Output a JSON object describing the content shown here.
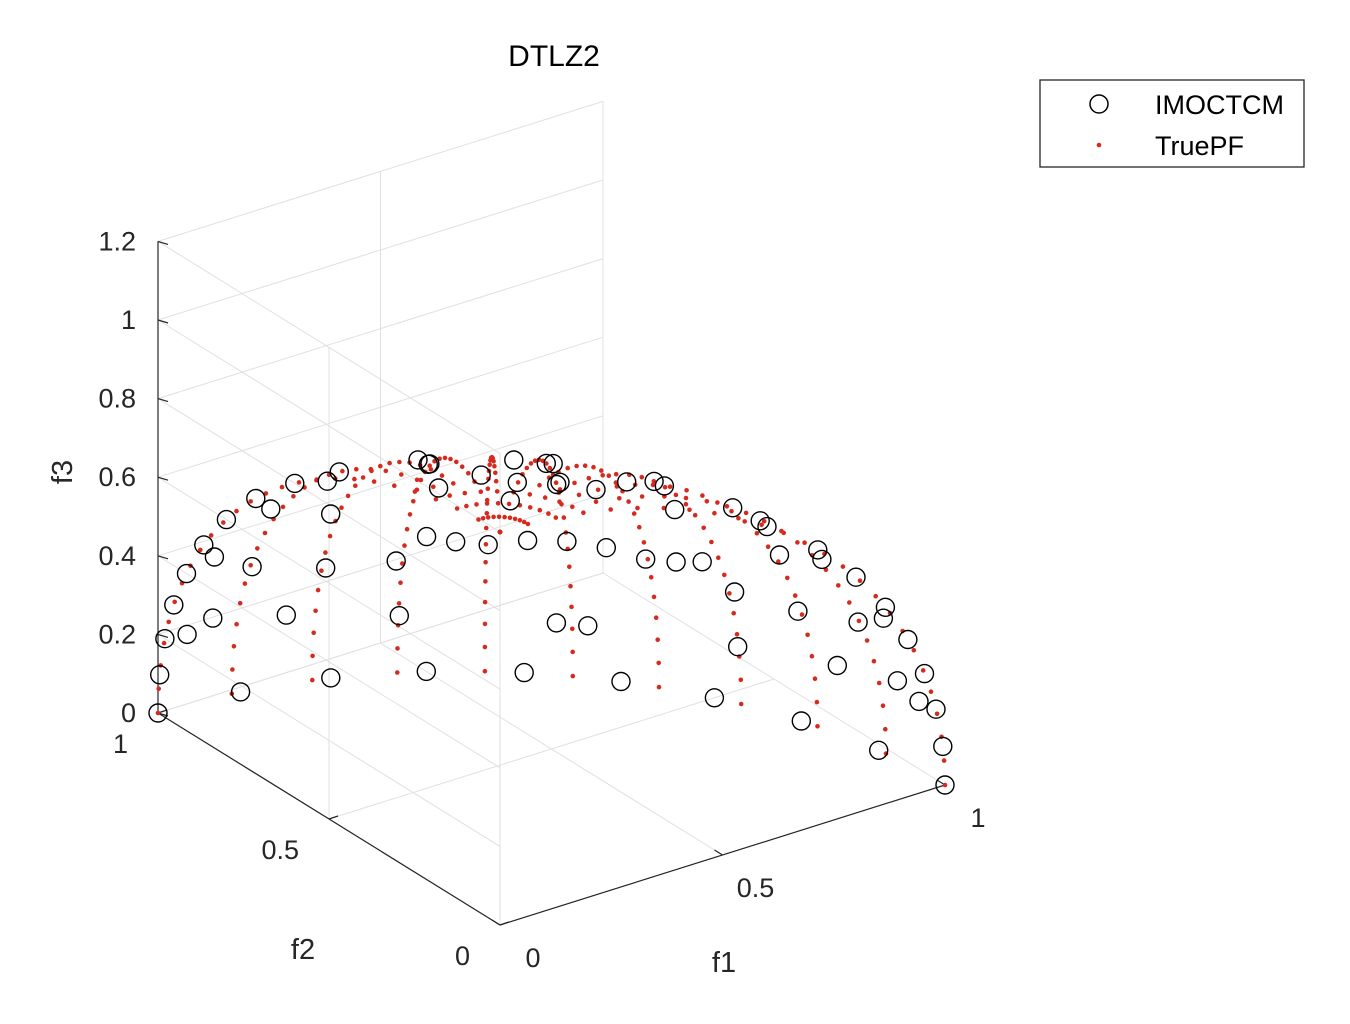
{
  "chart_data": {
    "type": "scatter",
    "title": "DTLZ2",
    "xlabel": "f1",
    "ylabel": "f2",
    "zlabel": "f3",
    "xlim": [
      0,
      1
    ],
    "ylim": [
      0,
      1
    ],
    "zlim": [
      0,
      1.2
    ],
    "x_ticks": [
      {
        "value": 0,
        "label": "0"
      },
      {
        "value": 0.5,
        "label": "0.5"
      },
      {
        "value": 1,
        "label": "1"
      }
    ],
    "y_ticks": [
      {
        "value": 0,
        "label": "0"
      },
      {
        "value": 0.5,
        "label": "0.5"
      },
      {
        "value": 1,
        "label": "1"
      }
    ],
    "z_ticks": [
      {
        "value": 0,
        "label": "0"
      },
      {
        "value": 0.2,
        "label": "0.2"
      },
      {
        "value": 0.4,
        "label": "0.4"
      },
      {
        "value": 0.6,
        "label": "0.6"
      },
      {
        "value": 0.8,
        "label": "0.8"
      },
      {
        "value": 1,
        "label": "1"
      },
      {
        "value": 1.2,
        "label": "1.2"
      }
    ],
    "grid": true,
    "legend_position": "top-right",
    "colors": {
      "imoctcm": "#000000",
      "truepf": "#d62a1e",
      "grid": "#e0e0e0",
      "axis": "#262626"
    },
    "series": [
      {
        "name": "IMOCTCM",
        "marker": "open-circle",
        "points": [
          [
            1.0,
            0.0,
            0.0
          ],
          [
            0.995,
            0.0,
            0.1
          ],
          [
            0.98,
            0.0,
            0.2
          ],
          [
            0.954,
            0.0,
            0.3
          ],
          [
            0.917,
            0.0,
            0.4
          ],
          [
            0.866,
            0.0,
            0.5
          ],
          [
            0.8,
            0.0,
            0.6
          ],
          [
            0.714,
            0.0,
            0.7
          ],
          [
            0.6,
            0.0,
            0.8
          ],
          [
            0.0,
            1.0,
            0.0
          ],
          [
            0.0,
            0.995,
            0.1
          ],
          [
            0.0,
            0.98,
            0.2
          ],
          [
            0.0,
            0.954,
            0.3
          ],
          [
            0.0,
            0.917,
            0.4
          ],
          [
            0.0,
            0.866,
            0.5
          ],
          [
            0.0,
            0.8,
            0.6
          ],
          [
            0.0,
            0.714,
            0.7
          ],
          [
            0.0,
            0.6,
            0.8
          ],
          [
            0.985,
            0.174,
            0.0
          ],
          [
            0.94,
            0.342,
            0.0
          ],
          [
            0.866,
            0.5,
            0.0
          ],
          [
            0.766,
            0.643,
            0.0
          ],
          [
            0.643,
            0.766,
            0.0
          ],
          [
            0.5,
            0.866,
            0.0
          ],
          [
            0.342,
            0.94,
            0.0
          ],
          [
            0.174,
            0.985,
            0.0
          ],
          [
            0.9,
            0.3,
            0.316
          ],
          [
            0.85,
            0.42,
            0.318
          ],
          [
            0.78,
            0.5,
            0.376
          ],
          [
            0.7,
            0.6,
            0.387
          ],
          [
            0.6,
            0.7,
            0.387
          ],
          [
            0.5,
            0.78,
            0.376
          ],
          [
            0.42,
            0.85,
            0.318
          ],
          [
            0.3,
            0.9,
            0.316
          ],
          [
            0.8,
            0.45,
            0.396
          ],
          [
            0.65,
            0.65,
            0.394
          ],
          [
            0.45,
            0.8,
            0.396
          ],
          [
            0.92,
            0.15,
            0.362
          ],
          [
            0.15,
            0.92,
            0.362
          ],
          [
            0.95,
            0.25,
            0.187
          ],
          [
            0.25,
            0.95,
            0.187
          ],
          [
            0.82,
            0.25,
            0.514
          ],
          [
            0.25,
            0.82,
            0.514
          ],
          [
            0.7,
            0.4,
            0.592
          ],
          [
            0.4,
            0.7,
            0.592
          ],
          [
            0.55,
            0.55,
            0.628
          ],
          [
            0.75,
            0.55,
            0.367
          ],
          [
            0.55,
            0.75,
            0.367
          ],
          [
            0.88,
            0.45,
            0.152
          ],
          [
            0.45,
            0.88,
            0.152
          ],
          [
            0.72,
            0.68,
            0.138
          ],
          [
            0.68,
            0.72,
            0.138
          ],
          [
            0.6,
            0.3,
            0.742
          ],
          [
            0.3,
            0.6,
            0.742
          ],
          [
            0.45,
            0.45,
            0.772
          ],
          [
            0.7,
            0.15,
            0.698
          ],
          [
            0.15,
            0.7,
            0.698
          ],
          [
            0.5,
            0.2,
            0.843
          ],
          [
            0.2,
            0.5,
            0.843
          ],
          [
            0.35,
            0.3,
            0.887
          ],
          [
            0.3,
            0.35,
            0.887
          ],
          [
            0.25,
            0.15,
            0.956
          ],
          [
            0.15,
            0.25,
            0.956
          ],
          [
            0.1,
            0.1,
            0.99
          ],
          [
            0.4,
            0.15,
            0.904
          ],
          [
            0.15,
            0.4,
            0.904
          ],
          [
            0.6,
            0.5,
            0.624
          ],
          [
            0.5,
            0.6,
            0.624
          ],
          [
            0.9,
            0.05,
            0.433
          ],
          [
            0.05,
            0.9,
            0.433
          ],
          [
            0.8,
            0.1,
            0.591
          ],
          [
            0.1,
            0.8,
            0.591
          ],
          [
            0.6,
            0.1,
            0.794
          ],
          [
            0.1,
            0.6,
            0.794
          ],
          [
            0.97,
            0.1,
            0.222
          ],
          [
            0.1,
            0.97,
            0.222
          ],
          [
            0.98,
            0.05,
            0.193
          ],
          [
            0.05,
            0.98,
            0.193
          ]
        ]
      },
      {
        "name": "TruePF",
        "marker": "dot",
        "description_grid": "points on the unit sphere octant f1^2+f2^2+f3^2=1",
        "meridian_count": 11,
        "points_per_meridian": 26
      }
    ]
  },
  "legend": [
    {
      "label": "IMOCTCM",
      "symbol": "open-circle"
    },
    {
      "label": "TruePF",
      "symbol": "dot"
    }
  ]
}
